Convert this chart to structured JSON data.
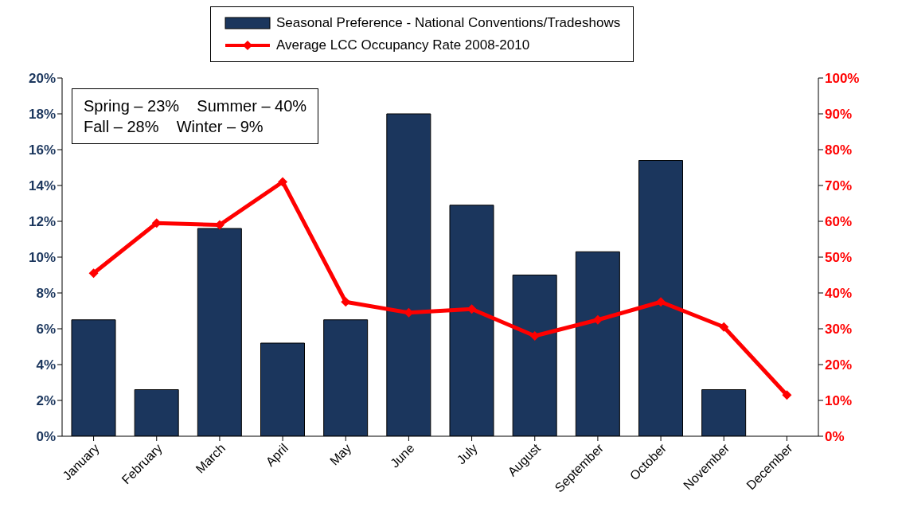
{
  "chart_data": {
    "type": "bar",
    "categories": [
      "January",
      "February",
      "March",
      "April",
      "May",
      "June",
      "July",
      "August",
      "September",
      "October",
      "November",
      "December"
    ],
    "series": [
      {
        "name": "Seasonal Preference - National Conventions/Tradeshows",
        "color": "#1b365d",
        "values": [
          6.5,
          2.6,
          11.6,
          5.2,
          6.5,
          18.0,
          12.9,
          9.0,
          10.3,
          15.4,
          2.6,
          0
        ]
      },
      {
        "name": "Average LCC Occupancy Rate 2008-2010",
        "type": "line",
        "axis": "y2",
        "color": "#ff0000",
        "marker": "diamond",
        "values": [
          45.5,
          59.5,
          59,
          71,
          37.5,
          34.5,
          35.5,
          28,
          32.5,
          37.5,
          30.5,
          11.5
        ]
      }
    ],
    "ylim": [
      0,
      20
    ],
    "yticks": [
      {
        "value": 0,
        "label": "0%"
      },
      {
        "value": 2,
        "label": "2%"
      },
      {
        "value": 4,
        "label": "4%"
      },
      {
        "value": 6,
        "label": "6%"
      },
      {
        "value": 8,
        "label": "8%"
      },
      {
        "value": 10,
        "label": "10%"
      },
      {
        "value": 12,
        "label": "12%"
      },
      {
        "value": 14,
        "label": "14%"
      },
      {
        "value": 16,
        "label": "16%"
      },
      {
        "value": 18,
        "label": "18%"
      },
      {
        "value": 20,
        "label": "20%"
      }
    ],
    "y2lim": [
      0,
      100
    ],
    "y2ticks": [
      {
        "value": 0,
        "label": "0%"
      },
      {
        "value": 10,
        "label": "10%"
      },
      {
        "value": 20,
        "label": "20%"
      },
      {
        "value": 30,
        "label": "30%"
      },
      {
        "value": 40,
        "label": "40%"
      },
      {
        "value": 50,
        "label": "50%"
      },
      {
        "value": 60,
        "label": "60%"
      },
      {
        "value": 70,
        "label": "70%"
      },
      {
        "value": 80,
        "label": "80%"
      },
      {
        "value": 90,
        "label": "90%"
      },
      {
        "value": 100,
        "label": "100%"
      }
    ],
    "annotations": [
      "Spring – 23%    Summer – 40%",
      "Fall – 28%    Winter – 9%"
    ],
    "legend": "top",
    "grid": false
  }
}
